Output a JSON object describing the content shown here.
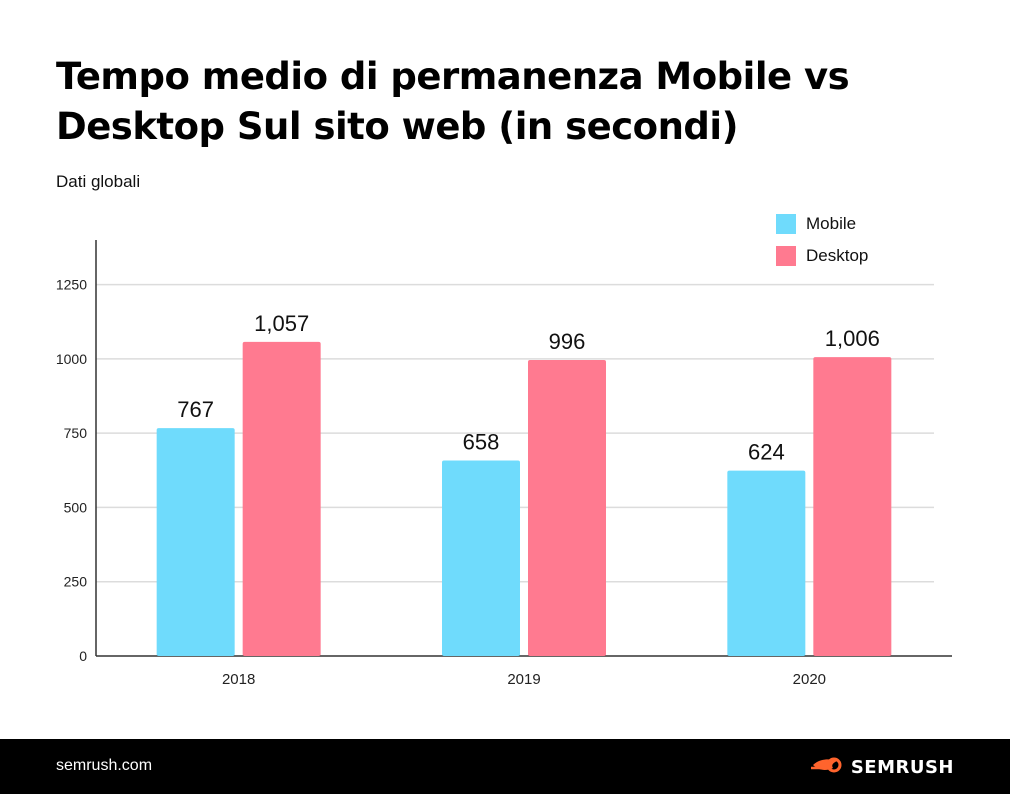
{
  "header": {
    "title": "Tempo medio di permanenza Mobile vs Desktop Sul sito web (in secondi)",
    "subtitle": "Dati globali"
  },
  "chart_data": {
    "type": "bar",
    "title": "Tempo medio di permanenza Mobile vs Desktop Sul sito web (in secondi)",
    "subtitle": "Dati globali",
    "categories": [
      "2018",
      "2019",
      "2020"
    ],
    "series": [
      {
        "name": "Mobile",
        "color": "#6fdbfc",
        "values": [
          767,
          658,
          624
        ],
        "labels": [
          "767",
          "658",
          "624"
        ]
      },
      {
        "name": "Desktop",
        "color": "#ff7a90",
        "values": [
          1057,
          996,
          1006
        ],
        "labels": [
          "1,057",
          "996",
          "1,006"
        ]
      }
    ],
    "yticks": [
      0,
      250,
      500,
      750,
      1000,
      1250
    ],
    "ylim": [
      0,
      1400
    ],
    "xlabel": "",
    "ylabel": "",
    "grid": true,
    "legend": "top-right"
  },
  "footer": {
    "url": "semrush.com",
    "brand": "SEMRUSH",
    "brand_icon": "semrush-fire-icon"
  }
}
